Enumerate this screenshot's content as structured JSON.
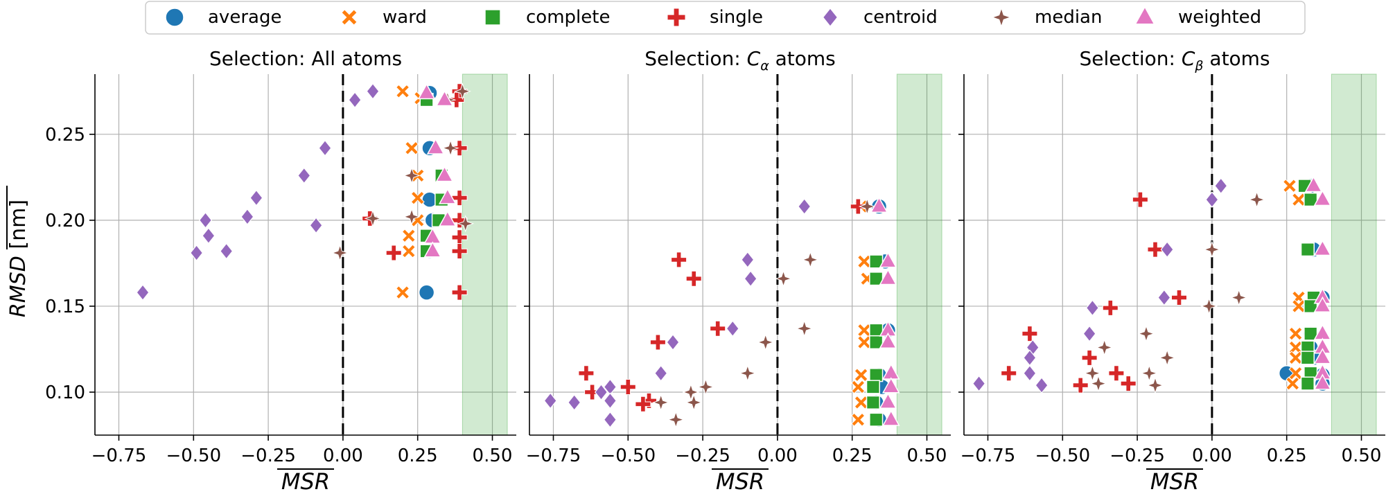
{
  "colors": {
    "average": "#1f77b4",
    "ward": "#ff7f0e",
    "complete": "#2ca02c",
    "single": "#d62728",
    "centroid": "#9467bd",
    "median": "#8c564b",
    "weighted": "#e377c2",
    "band": "#2ca02c"
  },
  "legend": {
    "placement": "top-center",
    "entries": [
      {
        "key": "average",
        "label": "average",
        "marker": "circle"
      },
      {
        "key": "ward",
        "label": "ward",
        "marker": "x"
      },
      {
        "key": "complete",
        "label": "complete",
        "marker": "square"
      },
      {
        "key": "single",
        "label": "single",
        "marker": "plus"
      },
      {
        "key": "centroid",
        "label": "centroid",
        "marker": "diamond"
      },
      {
        "key": "median",
        "label": "median",
        "marker": "star4"
      },
      {
        "key": "weighted",
        "label": "weighted",
        "marker": "triangle"
      }
    ]
  },
  "chart_data": [
    {
      "type": "scatter",
      "title_prefix": "Selection: ",
      "title_main": "All atoms",
      "title_sub": "",
      "title_suffix": "",
      "xlabel": "MSR",
      "ylabel_main": "RMSD",
      "ylabel_unit": " [nm]",
      "xlim": [
        -0.83,
        0.58
      ],
      "ylim": [
        0.075,
        0.285
      ],
      "xticks": [
        -0.75,
        -0.5,
        -0.25,
        0.0,
        0.25,
        0.5
      ],
      "xtick_labels": [
        "−0.75",
        "−0.50",
        "−0.25",
        "0.00",
        "0.25",
        "0.50"
      ],
      "yticks": [
        0.1,
        0.15,
        0.2,
        0.25
      ],
      "ytick_labels": [
        "0.10",
        "0.15",
        "0.20",
        "0.25"
      ],
      "grid": true,
      "vline_x": 0.0,
      "band": [
        0.4,
        0.55
      ],
      "series": [
        {
          "name": "average",
          "points": [
            [
              0.29,
              0.274
            ],
            [
              0.29,
              0.242
            ],
            [
              0.29,
              0.212
            ],
            [
              0.3,
              0.2
            ],
            [
              0.29,
              0.19
            ],
            [
              0.29,
              0.182
            ],
            [
              0.28,
              0.158
            ]
          ]
        },
        {
          "name": "ward",
          "points": [
            [
              0.2,
              0.275
            ],
            [
              0.26,
              0.271
            ],
            [
              0.23,
              0.242
            ],
            [
              0.25,
              0.226
            ],
            [
              0.25,
              0.213
            ],
            [
              0.25,
              0.2
            ],
            [
              0.22,
              0.191
            ],
            [
              0.22,
              0.182
            ],
            [
              0.2,
              0.158
            ]
          ]
        },
        {
          "name": "complete",
          "points": [
            [
              0.28,
              0.27
            ],
            [
              0.33,
              0.226
            ],
            [
              0.33,
              0.212
            ],
            [
              0.32,
              0.2
            ],
            [
              0.28,
              0.191
            ],
            [
              0.28,
              0.182
            ]
          ]
        },
        {
          "name": "single",
          "points": [
            [
              0.39,
              0.275
            ],
            [
              0.38,
              0.27
            ],
            [
              0.39,
              0.242
            ],
            [
              0.39,
              0.213
            ],
            [
              0.39,
              0.2
            ],
            [
              0.39,
              0.19
            ],
            [
              0.39,
              0.182
            ],
            [
              0.09,
              0.201
            ],
            [
              0.17,
              0.181
            ],
            [
              0.39,
              0.158
            ]
          ]
        },
        {
          "name": "centroid",
          "points": [
            [
              -0.67,
              0.158
            ],
            [
              -0.49,
              0.181
            ],
            [
              -0.45,
              0.191
            ],
            [
              -0.46,
              0.2
            ],
            [
              -0.39,
              0.182
            ],
            [
              -0.32,
              0.202
            ],
            [
              -0.29,
              0.213
            ],
            [
              -0.13,
              0.226
            ],
            [
              -0.09,
              0.197
            ],
            [
              -0.06,
              0.242
            ],
            [
              0.04,
              0.27
            ],
            [
              0.1,
              0.275
            ]
          ]
        },
        {
          "name": "median",
          "points": [
            [
              -0.01,
              0.181
            ],
            [
              0.1,
              0.201
            ],
            [
              0.23,
              0.226
            ],
            [
              0.23,
              0.202
            ],
            [
              0.36,
              0.242
            ],
            [
              0.41,
              0.198
            ],
            [
              0.4,
              0.275
            ],
            [
              0.35,
              0.27
            ]
          ]
        },
        {
          "name": "weighted",
          "points": [
            [
              0.28,
              0.274
            ],
            [
              0.31,
              0.242
            ],
            [
              0.34,
              0.226
            ],
            [
              0.35,
              0.213
            ],
            [
              0.35,
              0.2
            ],
            [
              0.3,
              0.19
            ],
            [
              0.3,
              0.182
            ],
            [
              0.34,
              0.27
            ]
          ]
        }
      ]
    },
    {
      "type": "scatter",
      "title_prefix": "Selection: ",
      "title_main": "C",
      "title_sub": "α",
      "title_suffix": " atoms",
      "xlabel": "MSR",
      "xlim": [
        -0.83,
        0.58
      ],
      "ylim": [
        0.075,
        0.285
      ],
      "xticks": [
        -0.75,
        -0.5,
        -0.25,
        0.0,
        0.25,
        0.5
      ],
      "xtick_labels": [
        "−0.75",
        "−0.50",
        "−0.25",
        "0.00",
        "0.25",
        "0.50"
      ],
      "yticks": [
        0.1,
        0.15,
        0.2,
        0.25
      ],
      "grid": true,
      "vline_x": 0.0,
      "band": [
        0.4,
        0.55
      ],
      "series": [
        {
          "name": "average",
          "points": [
            [
              0.34,
              0.208
            ],
            [
              0.36,
              0.176
            ],
            [
              0.37,
              0.136
            ],
            [
              0.34,
              0.11
            ],
            [
              0.35,
              0.103
            ],
            [
              0.33,
              0.094
            ],
            [
              0.34,
              0.084
            ]
          ]
        },
        {
          "name": "ward",
          "points": [
            [
              0.28,
              0.208
            ],
            [
              0.29,
              0.176
            ],
            [
              0.3,
              0.166
            ],
            [
              0.29,
              0.136
            ],
            [
              0.29,
              0.129
            ],
            [
              0.28,
              0.11
            ],
            [
              0.27,
              0.103
            ],
            [
              0.28,
              0.094
            ],
            [
              0.27,
              0.084
            ]
          ]
        },
        {
          "name": "complete",
          "points": [
            [
              0.33,
              0.176
            ],
            [
              0.33,
              0.166
            ],
            [
              0.33,
              0.136
            ],
            [
              0.33,
              0.129
            ],
            [
              0.33,
              0.11
            ],
            [
              0.32,
              0.103
            ],
            [
              0.32,
              0.094
            ],
            [
              0.33,
              0.084
            ]
          ]
        },
        {
          "name": "single",
          "points": [
            [
              0.27,
              0.208
            ],
            [
              -0.33,
              0.177
            ],
            [
              -0.28,
              0.166
            ],
            [
              -0.2,
              0.137
            ],
            [
              -0.4,
              0.129
            ],
            [
              -0.64,
              0.111
            ],
            [
              -0.5,
              0.103
            ],
            [
              -0.62,
              0.1
            ],
            [
              -0.43,
              0.095
            ],
            [
              -0.45,
              0.093
            ]
          ]
        },
        {
          "name": "centroid",
          "points": [
            [
              0.09,
              0.208
            ],
            [
              -0.1,
              0.177
            ],
            [
              -0.09,
              0.166
            ],
            [
              -0.15,
              0.137
            ],
            [
              -0.35,
              0.129
            ],
            [
              -0.39,
              0.111
            ],
            [
              -0.56,
              0.103
            ],
            [
              -0.59,
              0.1
            ],
            [
              -0.56,
              0.095
            ],
            [
              -0.76,
              0.095
            ],
            [
              -0.68,
              0.094
            ],
            [
              -0.56,
              0.084
            ]
          ]
        },
        {
          "name": "median",
          "points": [
            [
              0.3,
              0.208
            ],
            [
              0.11,
              0.177
            ],
            [
              0.02,
              0.166
            ],
            [
              0.09,
              0.137
            ],
            [
              -0.04,
              0.129
            ],
            [
              -0.1,
              0.111
            ],
            [
              -0.24,
              0.103
            ],
            [
              -0.29,
              0.1
            ],
            [
              -0.39,
              0.094
            ],
            [
              -0.34,
              0.084
            ],
            [
              -0.28,
              0.094
            ]
          ]
        },
        {
          "name": "weighted",
          "points": [
            [
              0.34,
              0.208
            ],
            [
              0.37,
              0.176
            ],
            [
              0.37,
              0.166
            ],
            [
              0.37,
              0.136
            ],
            [
              0.37,
              0.129
            ],
            [
              0.38,
              0.111
            ],
            [
              0.38,
              0.103
            ],
            [
              0.37,
              0.094
            ],
            [
              0.38,
              0.084
            ]
          ]
        }
      ]
    },
    {
      "type": "scatter",
      "title_prefix": "Selection: ",
      "title_main": "C",
      "title_sub": "β",
      "title_suffix": " atoms",
      "xlabel": "MSR",
      "xlim": [
        -0.83,
        0.58
      ],
      "ylim": [
        0.075,
        0.285
      ],
      "xticks": [
        -0.75,
        -0.5,
        -0.25,
        0.0,
        0.25,
        0.5
      ],
      "xtick_labels": [
        "−0.75",
        "−0.50",
        "−0.25",
        "0.00",
        "0.25",
        "0.50"
      ],
      "yticks": [
        0.1,
        0.15,
        0.2,
        0.25
      ],
      "grid": true,
      "vline_x": 0.0,
      "band": [
        0.4,
        0.55
      ],
      "series": [
        {
          "name": "average",
          "points": [
            [
              0.33,
              0.22
            ],
            [
              0.34,
              0.183
            ],
            [
              0.37,
              0.155
            ],
            [
              0.33,
              0.134
            ],
            [
              0.33,
              0.126
            ],
            [
              0.34,
              0.12
            ],
            [
              0.25,
              0.111
            ],
            [
              0.37,
              0.11
            ],
            [
              0.37,
              0.105
            ]
          ]
        },
        {
          "name": "ward",
          "points": [
            [
              0.26,
              0.22
            ],
            [
              0.29,
              0.212
            ],
            [
              0.32,
              0.183
            ],
            [
              0.29,
              0.155
            ],
            [
              0.29,
              0.15
            ],
            [
              0.28,
              0.134
            ],
            [
              0.28,
              0.126
            ],
            [
              0.28,
              0.12
            ],
            [
              0.28,
              0.111
            ],
            [
              0.27,
              0.105
            ]
          ]
        },
        {
          "name": "complete",
          "points": [
            [
              0.31,
              0.22
            ],
            [
              0.33,
              0.212
            ],
            [
              0.32,
              0.183
            ],
            [
              0.34,
              0.155
            ],
            [
              0.33,
              0.15
            ],
            [
              0.33,
              0.134
            ],
            [
              0.32,
              0.126
            ],
            [
              0.32,
              0.12
            ],
            [
              0.33,
              0.111
            ],
            [
              0.32,
              0.105
            ]
          ]
        },
        {
          "name": "single",
          "points": [
            [
              -0.24,
              0.212
            ],
            [
              -0.19,
              0.183
            ],
            [
              -0.11,
              0.155
            ],
            [
              -0.34,
              0.149
            ],
            [
              -0.61,
              0.134
            ],
            [
              -0.41,
              0.12
            ],
            [
              -0.68,
              0.111
            ],
            [
              -0.32,
              0.111
            ],
            [
              -0.28,
              0.105
            ],
            [
              -0.44,
              0.104
            ]
          ]
        },
        {
          "name": "centroid",
          "points": [
            [
              0.03,
              0.22
            ],
            [
              0.0,
              0.212
            ],
            [
              -0.15,
              0.183
            ],
            [
              -0.16,
              0.155
            ],
            [
              -0.4,
              0.149
            ],
            [
              -0.41,
              0.134
            ],
            [
              -0.6,
              0.126
            ],
            [
              -0.61,
              0.12
            ],
            [
              -0.61,
              0.111
            ],
            [
              -0.57,
              0.104
            ],
            [
              -0.78,
              0.105
            ]
          ]
        },
        {
          "name": "median",
          "points": [
            [
              0.15,
              0.212
            ],
            [
              0.0,
              0.183
            ],
            [
              0.09,
              0.155
            ],
            [
              -0.01,
              0.15
            ],
            [
              -0.22,
              0.134
            ],
            [
              -0.36,
              0.126
            ],
            [
              -0.15,
              0.12
            ],
            [
              -0.4,
              0.111
            ],
            [
              -0.21,
              0.111
            ],
            [
              -0.38,
              0.105
            ],
            [
              -0.19,
              0.104
            ]
          ]
        },
        {
          "name": "weighted",
          "points": [
            [
              0.34,
              0.22
            ],
            [
              0.37,
              0.212
            ],
            [
              0.37,
              0.183
            ],
            [
              0.37,
              0.155
            ],
            [
              0.37,
              0.15
            ],
            [
              0.37,
              0.134
            ],
            [
              0.37,
              0.126
            ],
            [
              0.37,
              0.12
            ],
            [
              0.37,
              0.111
            ],
            [
              0.37,
              0.105
            ]
          ]
        }
      ]
    }
  ]
}
